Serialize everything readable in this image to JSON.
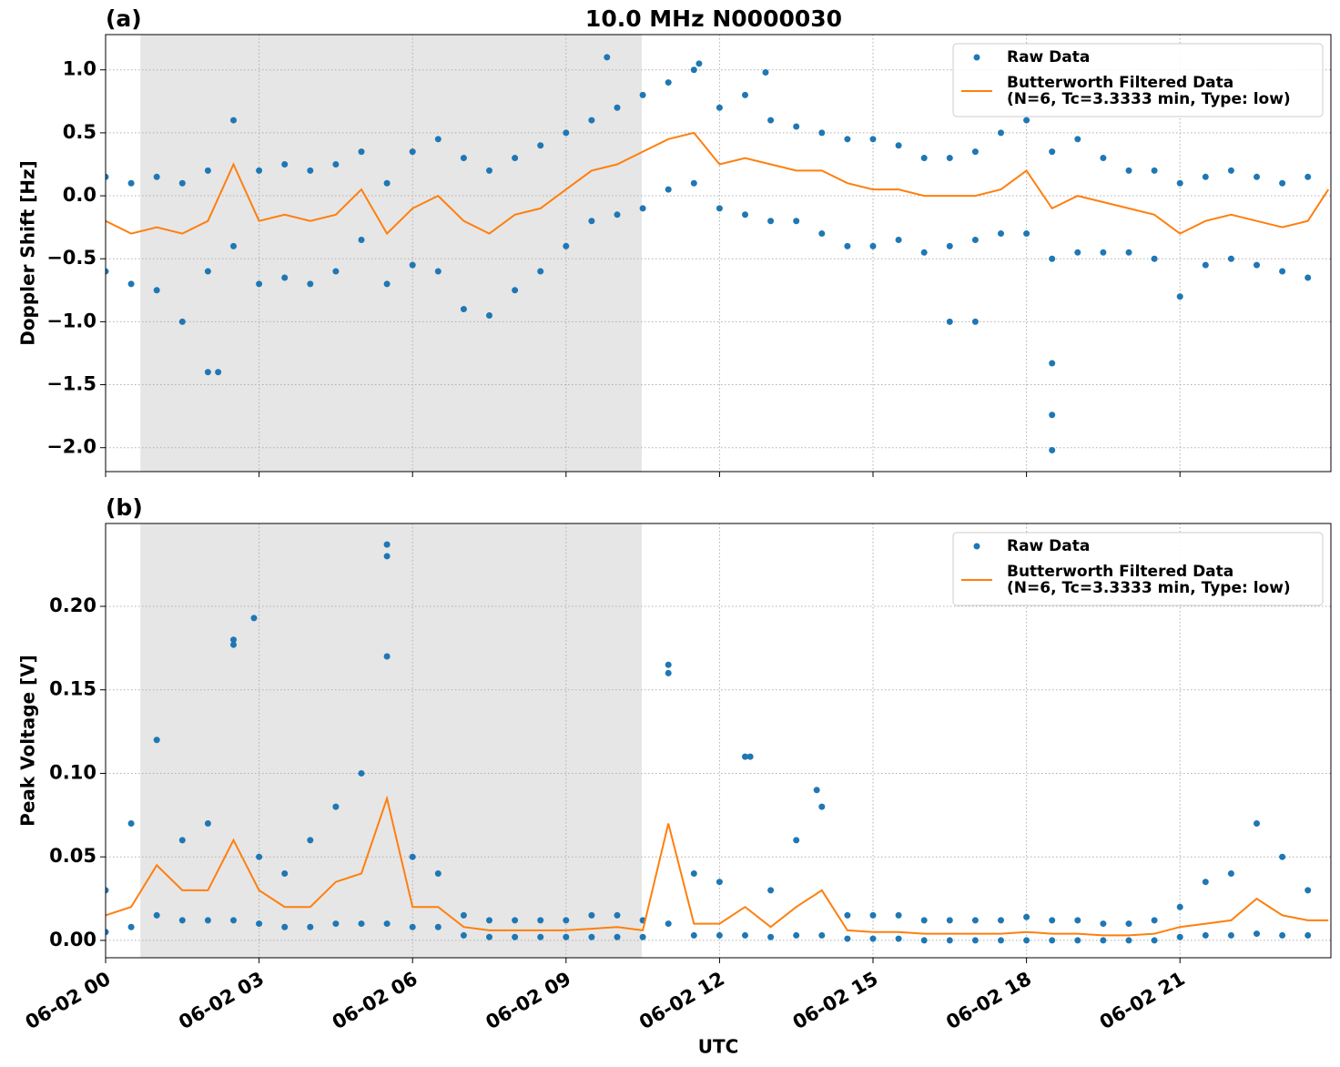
{
  "chart_data": [
    {
      "type": "scatter",
      "panel_label": "(a)",
      "title": "10.0 MHz N0000030",
      "ylabel": "Doppler Shift [Hz]",
      "xlim": [
        0,
        23.95
      ],
      "ylim": [
        -2.19,
        1.28
      ],
      "xticks": [
        0,
        3,
        6,
        9,
        12,
        15,
        18,
        21
      ],
      "yticks": [
        {
          "value": -2.0,
          "label": "−2.0"
        },
        {
          "value": -1.5,
          "label": "−1.5"
        },
        {
          "value": -1.0,
          "label": "−1.0"
        },
        {
          "value": -0.5,
          "label": "−0.5"
        },
        {
          "value": 0.0,
          "label": "0.0"
        },
        {
          "value": 0.5,
          "label": "0.5"
        },
        {
          "value": 1.0,
          "label": "1.0"
        }
      ],
      "grid": true,
      "legend": "upper right",
      "shaded_span": [
        0.68,
        10.48
      ],
      "shade_color": "#e6e6e6",
      "series": [
        {
          "name": "Raw Data",
          "color": "#1f77b4",
          "marker": "o",
          "x": [
            0,
            0.5,
            1,
            1.5,
            2,
            2.5,
            3,
            3.5,
            4,
            4.5,
            5,
            5.5,
            6,
            6.5,
            7,
            7.5,
            8,
            8.5,
            9,
            9.5,
            10,
            10.5,
            11,
            11.5,
            12,
            12.5,
            13,
            13.5,
            14,
            14.5,
            15,
            15.5,
            16,
            16.5,
            17,
            17.5,
            18,
            18.5,
            19,
            19.5,
            20,
            20.5,
            21,
            21.5,
            22,
            22.5,
            23,
            23.5,
            0,
            0.5,
            1,
            1.5,
            2,
            2.5,
            3,
            3.5,
            4,
            4.5,
            5,
            5.5,
            6,
            6.5,
            7,
            7.5,
            8,
            8.5,
            9,
            9.5,
            10,
            10.5,
            11,
            11.5,
            12,
            12.5,
            13,
            13.5,
            14,
            14.5,
            15,
            15.5,
            16,
            16.5,
            17,
            17.5,
            18,
            18.5,
            19,
            19.5,
            20,
            20.5,
            21,
            21.5,
            22,
            22.5,
            23,
            23.5,
            2.0,
            2.2,
            9.8,
            18.5,
            18.5,
            18.5,
            16.5,
            17.0,
            12.9,
            11.6
          ],
          "values": [
            0.15,
            0.1,
            0.15,
            0.1,
            0.2,
            0.6,
            0.2,
            0.25,
            0.2,
            0.25,
            0.35,
            0.1,
            0.35,
            0.45,
            0.3,
            0.2,
            0.3,
            0.4,
            0.5,
            0.6,
            0.7,
            0.8,
            0.9,
            1.0,
            0.7,
            0.8,
            0.6,
            0.55,
            0.5,
            0.45,
            0.45,
            0.4,
            0.3,
            0.3,
            0.35,
            0.5,
            0.6,
            0.35,
            0.45,
            0.3,
            0.2,
            0.2,
            0.1,
            0.15,
            0.2,
            0.15,
            0.1,
            0.15,
            -0.6,
            -0.7,
            -0.75,
            -1.0,
            -0.6,
            -0.4,
            -0.7,
            -0.65,
            -0.7,
            -0.6,
            -0.35,
            -0.7,
            -0.55,
            -0.6,
            -0.9,
            -0.95,
            -0.75,
            -0.6,
            -0.4,
            -0.2,
            -0.15,
            -0.1,
            0.05,
            0.1,
            -0.1,
            -0.15,
            -0.2,
            -0.2,
            -0.3,
            -0.4,
            -0.4,
            -0.35,
            -0.45,
            -0.4,
            -0.35,
            -0.3,
            -0.3,
            -0.5,
            -0.45,
            -0.45,
            -0.45,
            -0.5,
            -0.8,
            -0.55,
            -0.5,
            -0.55,
            -0.6,
            -0.65,
            -1.4,
            -1.4,
            1.1,
            -1.33,
            -1.74,
            -2.02,
            -1.0,
            -1.0,
            0.98,
            1.05
          ]
        },
        {
          "name": "Butterworth Filtered Data\n(N=6, Tc=3.3333 min, Type: low)",
          "color": "#ff7f0e",
          "marker": "line",
          "x": [
            0,
            0.5,
            1,
            1.5,
            2,
            2.5,
            3,
            3.5,
            4,
            4.5,
            5,
            5.5,
            6,
            6.5,
            7,
            7.5,
            8,
            8.5,
            9,
            9.5,
            10,
            10.5,
            11,
            11.5,
            12,
            12.5,
            13,
            13.5,
            14,
            14.5,
            15,
            15.5,
            16,
            16.5,
            17,
            17.5,
            18,
            18.5,
            19,
            19.5,
            20,
            20.5,
            21,
            21.5,
            22,
            22.5,
            23,
            23.5,
            23.9
          ],
          "values": [
            -0.2,
            -0.3,
            -0.25,
            -0.3,
            -0.2,
            0.25,
            -0.2,
            -0.15,
            -0.2,
            -0.15,
            0.05,
            -0.3,
            -0.1,
            0.0,
            -0.2,
            -0.3,
            -0.15,
            -0.1,
            0.05,
            0.2,
            0.25,
            0.35,
            0.45,
            0.5,
            0.25,
            0.3,
            0.25,
            0.2,
            0.2,
            0.1,
            0.05,
            0.05,
            0.0,
            0.0,
            0.0,
            0.05,
            0.2,
            -0.1,
            0.0,
            -0.05,
            -0.1,
            -0.15,
            -0.3,
            -0.2,
            -0.15,
            -0.2,
            -0.25,
            -0.2,
            0.05
          ]
        }
      ]
    },
    {
      "type": "scatter",
      "panel_label": "(b)",
      "ylabel": "Peak Voltage [V]",
      "xlabel": "UTC",
      "xlim": [
        0,
        23.95
      ],
      "ylim": [
        -0.0104,
        0.2496
      ],
      "xticks": [
        {
          "value": 0,
          "label": "06-02 00"
        },
        {
          "value": 3,
          "label": "06-02 03"
        },
        {
          "value": 6,
          "label": "06-02 06"
        },
        {
          "value": 9,
          "label": "06-02 09"
        },
        {
          "value": 12,
          "label": "06-02 12"
        },
        {
          "value": 15,
          "label": "06-02 15"
        },
        {
          "value": 18,
          "label": "06-02 18"
        },
        {
          "value": 21,
          "label": "06-02 21"
        }
      ],
      "yticks": [
        {
          "value": 0.0,
          "label": "0.00"
        },
        {
          "value": 0.05,
          "label": "0.05"
        },
        {
          "value": 0.1,
          "label": "0.10"
        },
        {
          "value": 0.15,
          "label": "0.15"
        },
        {
          "value": 0.2,
          "label": "0.20"
        }
      ],
      "grid": true,
      "legend": "upper right",
      "shaded_span": [
        0.68,
        10.48
      ],
      "shade_color": "#e6e6e6",
      "series": [
        {
          "name": "Raw Data",
          "color": "#1f77b4",
          "marker": "o",
          "x": [
            0,
            0.5,
            1,
            1.5,
            2,
            2.5,
            3,
            3.5,
            4,
            4.5,
            5,
            5.5,
            6,
            6.5,
            7,
            7.5,
            8,
            8.5,
            9,
            9.5,
            10,
            10.5,
            11,
            11.5,
            12,
            12.5,
            13,
            13.5,
            14,
            14.5,
            15,
            15.5,
            16,
            16.5,
            17,
            17.5,
            18,
            18.5,
            19,
            19.5,
            20,
            20.5,
            21,
            21.5,
            22,
            22.5,
            23,
            23.5,
            0,
            0.5,
            1,
            1.5,
            2,
            2.5,
            3,
            3.5,
            4,
            4.5,
            5,
            5.5,
            6,
            6.5,
            7,
            7.5,
            8,
            8.5,
            9,
            9.5,
            10,
            10.5,
            11,
            11.5,
            12,
            12.5,
            13,
            13.5,
            14,
            14.5,
            15,
            15.5,
            16,
            16.5,
            17,
            17.5,
            18,
            18.5,
            19,
            19.5,
            20,
            20.5,
            21,
            21.5,
            22,
            22.5,
            23,
            23.5,
            5.5,
            5.5,
            2.9,
            2.5,
            11.0,
            12.6,
            13.9
          ],
          "values": [
            0.03,
            0.07,
            0.12,
            0.06,
            0.07,
            0.18,
            0.05,
            0.04,
            0.06,
            0.08,
            0.1,
            0.17,
            0.05,
            0.04,
            0.015,
            0.012,
            0.012,
            0.012,
            0.012,
            0.015,
            0.015,
            0.012,
            0.16,
            0.04,
            0.035,
            0.11,
            0.03,
            0.06,
            0.08,
            0.015,
            0.015,
            0.015,
            0.012,
            0.012,
            0.012,
            0.012,
            0.014,
            0.012,
            0.012,
            0.01,
            0.01,
            0.012,
            0.02,
            0.035,
            0.04,
            0.07,
            0.05,
            0.03,
            0.005,
            0.008,
            0.015,
            0.012,
            0.012,
            0.012,
            0.01,
            0.008,
            0.008,
            0.01,
            0.01,
            0.01,
            0.008,
            0.008,
            0.003,
            0.002,
            0.002,
            0.002,
            0.002,
            0.002,
            0.002,
            0.002,
            0.01,
            0.003,
            0.003,
            0.003,
            0.002,
            0.003,
            0.003,
            0.001,
            0.001,
            0.001,
            0.0,
            0.0,
            0.0,
            0.0,
            0.0,
            0.0,
            0.0,
            0.0,
            0.0,
            0.0,
            0.002,
            0.003,
            0.003,
            0.004,
            0.003,
            0.003,
            0.237,
            0.23,
            0.193,
            0.177,
            0.165,
            0.11,
            0.09
          ]
        },
        {
          "name": "Butterworth Filtered Data\n(N=6, Tc=3.3333 min, Type: low)",
          "color": "#ff7f0e",
          "marker": "line",
          "x": [
            0,
            0.5,
            1,
            1.5,
            2,
            2.5,
            3,
            3.5,
            4,
            4.5,
            5,
            5.5,
            6,
            6.5,
            7,
            7.5,
            8,
            8.5,
            9,
            9.5,
            10,
            10.5,
            11,
            11.5,
            12,
            12.5,
            13,
            13.5,
            14,
            14.5,
            15,
            15.5,
            16,
            16.5,
            17,
            17.5,
            18,
            18.5,
            19,
            19.5,
            20,
            20.5,
            21,
            21.5,
            22,
            22.5,
            23,
            23.5,
            23.9
          ],
          "values": [
            0.015,
            0.02,
            0.045,
            0.03,
            0.03,
            0.06,
            0.03,
            0.02,
            0.02,
            0.035,
            0.04,
            0.085,
            0.02,
            0.02,
            0.008,
            0.006,
            0.006,
            0.006,
            0.006,
            0.007,
            0.008,
            0.006,
            0.07,
            0.01,
            0.01,
            0.02,
            0.008,
            0.02,
            0.03,
            0.006,
            0.005,
            0.005,
            0.004,
            0.004,
            0.004,
            0.004,
            0.005,
            0.004,
            0.004,
            0.003,
            0.003,
            0.004,
            0.008,
            0.01,
            0.012,
            0.025,
            0.015,
            0.012,
            0.012
          ]
        }
      ]
    }
  ]
}
